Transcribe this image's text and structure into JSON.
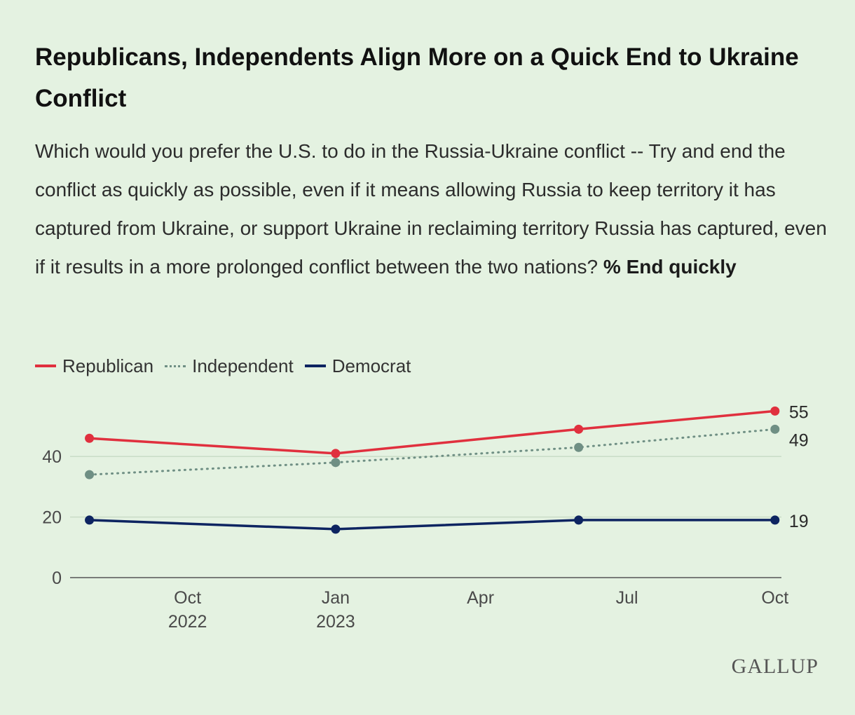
{
  "header": {
    "title": "Republicans, Independents Align More on a Quick End to Ukraine Conflict",
    "subtitle": "Which would you prefer the U.S. to do in the Russia-Ukraine conflict -- Try and end the conflict as quickly as possible, even if it means allowing Russia to keep territory it has captured from Ukraine, or support Ukraine in reclaiming territory Russia has captured, even if it results in a more prolonged conflict between the two nations?",
    "subtitle_emphasis": "% End quickly"
  },
  "branding": {
    "logo_text": "GALLUP"
  },
  "colors": {
    "background": "#e4f2e1",
    "republican": "#e0303e",
    "independent": "#6f8f84",
    "democrat": "#0d2461",
    "gridline": "#c9dcc6",
    "axis": "#555555"
  },
  "chart_data": {
    "type": "line",
    "x_axis_type": "date",
    "x_range": [
      "2022-07-20",
      "2023-10-05"
    ],
    "ylim": [
      0,
      60
    ],
    "yticks": [
      0,
      20,
      40
    ],
    "grid": true,
    "legend_position": "top-left",
    "x_ticks": [
      {
        "date": "2022-10-01",
        "label_top": "Oct",
        "label_bottom": "2022"
      },
      {
        "date": "2023-01-01",
        "label_top": "Jan",
        "label_bottom": "2023"
      },
      {
        "date": "2023-04-01",
        "label_top": "Apr",
        "label_bottom": ""
      },
      {
        "date": "2023-07-01",
        "label_top": "Jul",
        "label_bottom": ""
      },
      {
        "date": "2023-10-01",
        "label_top": "Oct",
        "label_bottom": ""
      }
    ],
    "series": [
      {
        "name": "Republican",
        "color": "#e0303e",
        "style": "solid",
        "points": [
          {
            "date": "2022-08-01",
            "value": 46
          },
          {
            "date": "2023-01-01",
            "value": 41
          },
          {
            "date": "2023-06-01",
            "value": 49
          },
          {
            "date": "2023-10-01",
            "value": 55
          }
        ],
        "end_label": "55"
      },
      {
        "name": "Independent",
        "color": "#6f8f84",
        "style": "dotted",
        "points": [
          {
            "date": "2022-08-01",
            "value": 34
          },
          {
            "date": "2023-01-01",
            "value": 38
          },
          {
            "date": "2023-06-01",
            "value": 43
          },
          {
            "date": "2023-10-01",
            "value": 49
          }
        ],
        "end_label": "49"
      },
      {
        "name": "Democrat",
        "color": "#0d2461",
        "style": "solid",
        "points": [
          {
            "date": "2022-08-01",
            "value": 19
          },
          {
            "date": "2023-01-01",
            "value": 16
          },
          {
            "date": "2023-06-01",
            "value": 19
          },
          {
            "date": "2023-10-01",
            "value": 19
          }
        ],
        "end_label": "19"
      }
    ]
  }
}
